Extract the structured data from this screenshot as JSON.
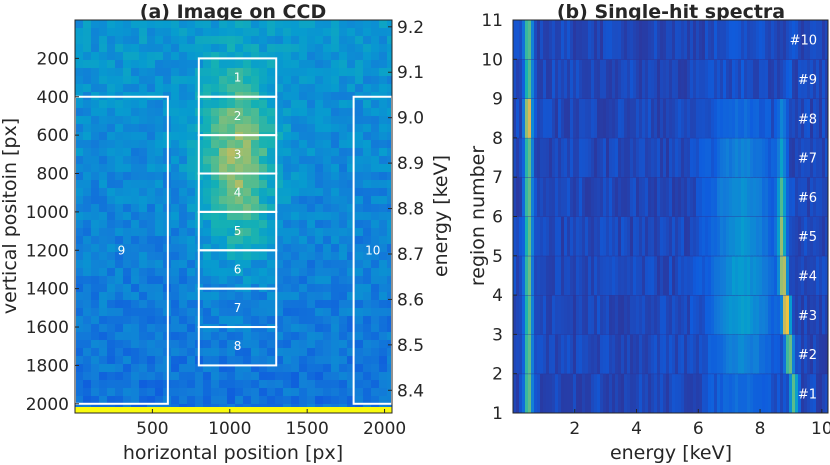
{
  "chart_data": [
    {
      "type": "heatmap",
      "title": "(a) Image on CCD",
      "xlabel": "horizontal position [px]",
      "ylabel": "vertical positoin [px]",
      "y2label": "energy [keV]",
      "xlim": [
        0,
        2048
      ],
      "ylim": [
        2048,
        0
      ],
      "y2lim": [
        8.35,
        9.215
      ],
      "xticks": [
        500,
        1000,
        1500,
        2000
      ],
      "yticks": [
        200,
        400,
        600,
        800,
        1000,
        1200,
        1400,
        1600,
        1800,
        2000
      ],
      "y2ticks": [
        9.2,
        9.1,
        9.0,
        8.9,
        8.8,
        8.7,
        8.6,
        8.5,
        8.4
      ],
      "y2tick_labels": [
        "9.2",
        "9.1",
        "9.0",
        "8.9",
        "8.8",
        "8.7",
        "8.6",
        "8.5",
        "8.4"
      ],
      "regions": [
        {
          "label": "1",
          "x": [
            800,
            1300
          ],
          "y": [
            200,
            400
          ]
        },
        {
          "label": "2",
          "x": [
            800,
            1300
          ],
          "y": [
            400,
            600
          ]
        },
        {
          "label": "3",
          "x": [
            800,
            1300
          ],
          "y": [
            600,
            800
          ]
        },
        {
          "label": "4",
          "x": [
            800,
            1300
          ],
          "y": [
            800,
            1000
          ]
        },
        {
          "label": "5",
          "x": [
            800,
            1300
          ],
          "y": [
            1000,
            1200
          ]
        },
        {
          "label": "6",
          "x": [
            800,
            1300
          ],
          "y": [
            1200,
            1400
          ]
        },
        {
          "label": "7",
          "x": [
            800,
            1300
          ],
          "y": [
            1400,
            1600
          ]
        },
        {
          "label": "8",
          "x": [
            800,
            1300
          ],
          "y": [
            1600,
            1800
          ]
        },
        {
          "label": "9",
          "x": [
            0,
            600
          ],
          "y": [
            400,
            2000
          ]
        },
        {
          "label": "10",
          "x": [
            1800,
            2048
          ],
          "y": [
            400,
            2000
          ]
        }
      ]
    },
    {
      "type": "heatmap",
      "title": "(b) Single-hit spectra",
      "xlabel": "energy [keV]",
      "ylabel": "region number",
      "xlim": [
        0,
        10.2
      ],
      "ylim": [
        1,
        11
      ],
      "xticks": [
        2,
        4,
        6,
        8,
        10
      ],
      "yticks": [
        1,
        2,
        3,
        4,
        5,
        6,
        7,
        8,
        9,
        10,
        11
      ],
      "rows": [
        {
          "label": "#1",
          "peak_kev": 9.1
        },
        {
          "label": "#2",
          "peak_kev": 8.95
        },
        {
          "label": "#3",
          "peak_kev": 8.85
        },
        {
          "label": "#4",
          "peak_kev": 8.75
        },
        {
          "label": "#5",
          "peak_kev": 8.7
        },
        {
          "label": "#6",
          "peak_kev": 8.7
        },
        {
          "label": "#7",
          "peak_kev": 8.7
        },
        {
          "label": "#8",
          "peak_kev": 8.7
        },
        {
          "label": "#9",
          "peak_kev": 8.9
        },
        {
          "label": "#10",
          "peak_kev": 9.0
        }
      ]
    }
  ]
}
